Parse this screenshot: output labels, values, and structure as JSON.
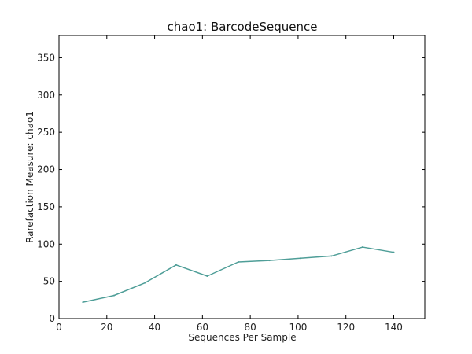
{
  "chart_data": {
    "type": "line",
    "title": "chao1: BarcodeSequence",
    "xlabel": "Sequences Per Sample",
    "ylabel": "Rarefaction Measure: chao1",
    "xlim": [
      0,
      153
    ],
    "ylim": [
      0,
      380
    ],
    "xticks": [
      0,
      20,
      40,
      60,
      80,
      100,
      120,
      140
    ],
    "yticks": [
      0,
      50,
      100,
      150,
      200,
      250,
      300,
      350
    ],
    "grid": false,
    "legend": "none",
    "series": [
      {
        "color": "#4f9e98",
        "x": [
          10,
          23,
          36,
          49,
          62,
          75,
          88,
          101,
          114,
          127,
          140
        ],
        "y": [
          22,
          31,
          48,
          72,
          57,
          76,
          78,
          81,
          84,
          96,
          89
        ]
      }
    ]
  }
}
